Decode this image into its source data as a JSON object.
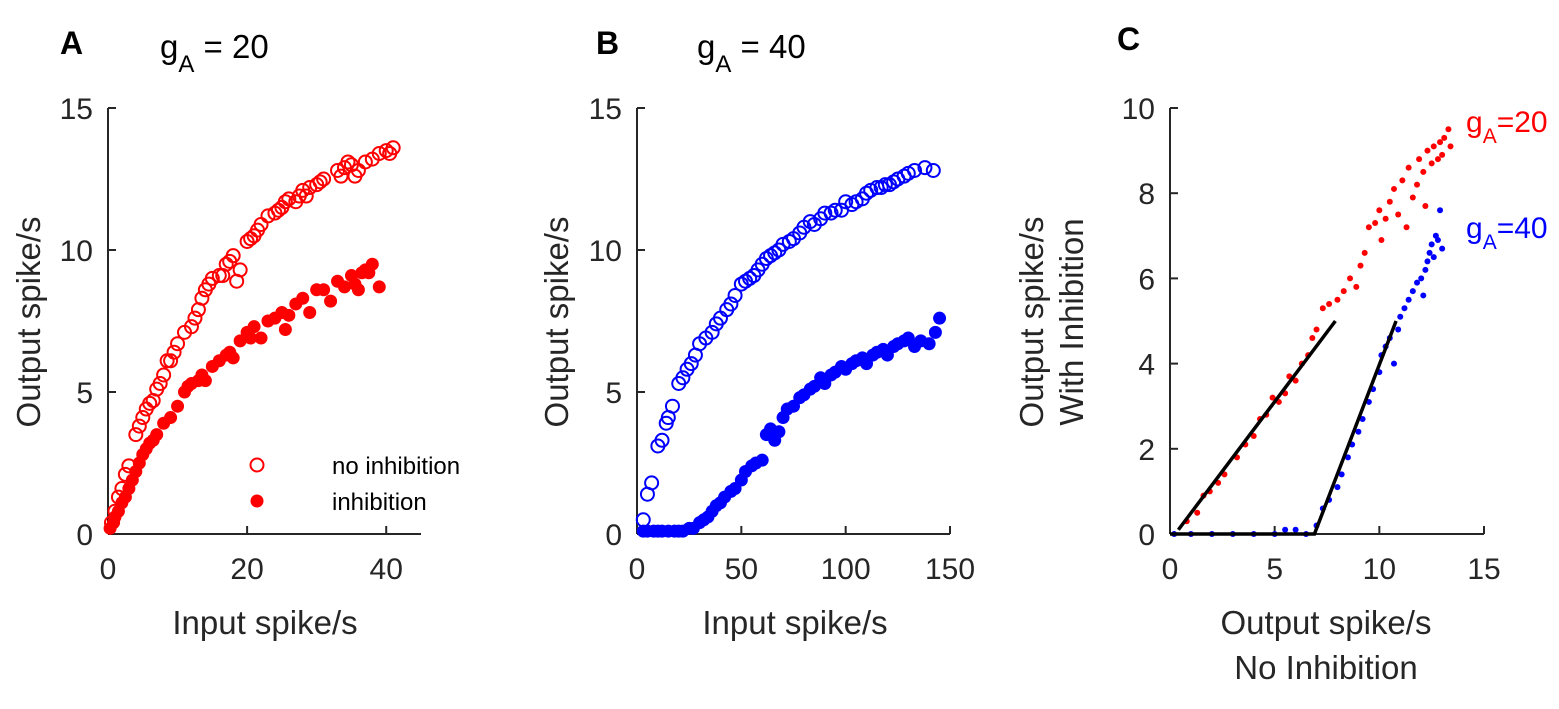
{
  "chart_data": [
    {
      "type": "scatter",
      "panel_label": "A",
      "title_parts": {
        "g": "g",
        "sub": "A",
        "rest": " = 20"
      },
      "xlabel": "Input spike/s",
      "ylabel": "Output spike/s",
      "xlim": [
        0,
        45
      ],
      "ylim": [
        0,
        15
      ],
      "xticks": [
        0,
        20,
        40
      ],
      "yticks": [
        0,
        5,
        10,
        15
      ],
      "legend": {
        "placement": "lower-right",
        "items": [
          "no inhibition",
          "inhibition"
        ]
      },
      "series": [
        {
          "name": "no inhibition",
          "marker": "open-circle",
          "color": "#ff0000",
          "x": [
            0.5,
            1,
            1.5,
            2,
            2.5,
            3,
            4,
            4.5,
            5,
            5.5,
            6,
            6.5,
            7,
            7.5,
            8,
            8.5,
            9,
            9.5,
            10,
            11,
            12,
            12.5,
            13,
            13.5,
            14,
            14.5,
            15,
            16,
            16.5,
            17,
            17.5,
            18,
            18.5,
            19,
            20,
            20.5,
            21,
            21.5,
            22,
            23,
            24,
            24.5,
            25,
            25.5,
            26,
            27,
            27.5,
            28,
            28.5,
            29,
            30,
            30.5,
            31,
            33,
            33.5,
            34,
            34.5,
            35,
            35.5,
            36,
            37,
            38,
            39,
            40,
            40.5,
            41
          ],
          "y": [
            0.4,
            0.8,
            1.3,
            1.6,
            2.1,
            2.4,
            3.5,
            3.8,
            4.1,
            4.4,
            4.6,
            4.7,
            5.1,
            5.3,
            5.6,
            6.1,
            6.1,
            6.4,
            6.7,
            7.1,
            7.3,
            7.6,
            7.9,
            8.3,
            8.6,
            8.8,
            9,
            9.1,
            9.1,
            9.5,
            9.6,
            9.8,
            8.9,
            9.3,
            10.3,
            10.4,
            10.5,
            10.7,
            10.9,
            11.2,
            11.3,
            11.4,
            11.5,
            11.7,
            11.8,
            11.7,
            11.9,
            12.1,
            11.9,
            12.2,
            12.3,
            12.4,
            12.5,
            12.8,
            12.6,
            12.9,
            13.1,
            13,
            12.6,
            12.8,
            13.1,
            13.2,
            13.4,
            13.5,
            13.4,
            13.6
          ]
        },
        {
          "name": "inhibition",
          "marker": "filled-circle",
          "color": "#ff0000",
          "x": [
            0.3,
            0.8,
            1,
            1.5,
            2,
            2.5,
            3,
            3.5,
            4,
            4.5,
            5,
            5.5,
            6,
            6.5,
            7,
            8,
            9,
            10,
            11,
            11.5,
            12,
            13,
            13.5,
            14,
            15,
            16,
            17,
            17.5,
            18,
            19,
            20,
            20.5,
            21,
            22,
            23,
            24,
            25,
            25.5,
            26,
            27,
            28,
            29,
            30,
            31,
            32,
            33,
            34,
            35,
            35.5,
            36,
            36.5,
            37,
            37.5,
            38,
            39
          ],
          "y": [
            0.2,
            0.4,
            0.6,
            0.8,
            1.1,
            1.3,
            1.6,
            1.9,
            2.2,
            2.5,
            2.8,
            3,
            3.2,
            3.3,
            3.5,
            3.9,
            4.1,
            4.5,
            5,
            5.2,
            5.3,
            5.4,
            5.6,
            5.4,
            5.9,
            6.1,
            6.3,
            6.4,
            6.2,
            6.8,
            7.1,
            6.9,
            7.3,
            6.9,
            7.5,
            7.6,
            7.8,
            7.2,
            7.7,
            8.1,
            8.3,
            7.8,
            8.6,
            8.6,
            8.2,
            8.9,
            8.7,
            9.1,
            8.8,
            8.6,
            9.2,
            9.3,
            9.2,
            9.5,
            8.7
          ]
        }
      ]
    },
    {
      "type": "scatter",
      "panel_label": "B",
      "title_parts": {
        "g": "g",
        "sub": "A",
        "rest": " = 40"
      },
      "xlabel": "Input spike/s",
      "ylabel": "Output spike/s",
      "xlim": [
        0,
        150
      ],
      "ylim": [
        0,
        15
      ],
      "xticks": [
        0,
        50,
        100,
        150
      ],
      "yticks": [
        0,
        5,
        10,
        15
      ],
      "series": [
        {
          "name": "no inhibition",
          "marker": "open-circle",
          "color": "#0000ff",
          "x": [
            3,
            5,
            7,
            10,
            12,
            14,
            15,
            17,
            20,
            22,
            24,
            26,
            28,
            30,
            33,
            36,
            38,
            40,
            43,
            45,
            47,
            50,
            52,
            54,
            56,
            58,
            60,
            62,
            64,
            66,
            68,
            70,
            73,
            75,
            78,
            80,
            83,
            85,
            88,
            90,
            93,
            95,
            98,
            100,
            103,
            105,
            108,
            110,
            112,
            115,
            117,
            119,
            121,
            123,
            125,
            128,
            130,
            133,
            138,
            142
          ],
          "y": [
            0.5,
            1.4,
            1.8,
            3.1,
            3.3,
            3.9,
            4.1,
            4.5,
            5.3,
            5.5,
            5.8,
            6,
            6.3,
            6.7,
            6.9,
            7.1,
            7.4,
            7.6,
            7.9,
            8.1,
            8.4,
            8.8,
            8.9,
            9,
            9.1,
            9.3,
            9.5,
            9.7,
            9.8,
            9.9,
            10,
            10.2,
            10.3,
            10.4,
            10.6,
            10.8,
            11,
            10.9,
            11.1,
            11.3,
            11.3,
            11.4,
            11.4,
            11.7,
            11.6,
            11.7,
            11.8,
            12,
            12.1,
            12.2,
            12.2,
            12.3,
            12.3,
            12.4,
            12.5,
            12.6,
            12.7,
            12.8,
            12.9,
            12.8
          ]
        },
        {
          "name": "inhibition",
          "marker": "filled-circle",
          "color": "#0000ff",
          "x": [
            3,
            5,
            8,
            10,
            12,
            15,
            18,
            20,
            22,
            25,
            27,
            30,
            32,
            34,
            36,
            38,
            40,
            42,
            45,
            47,
            50,
            52,
            55,
            57,
            60,
            62,
            64,
            66,
            68,
            70,
            72,
            75,
            78,
            80,
            83,
            85,
            88,
            90,
            93,
            95,
            98,
            100,
            103,
            105,
            108,
            110,
            113,
            115,
            118,
            120,
            123,
            125,
            128,
            130,
            133,
            136,
            140,
            143,
            145
          ],
          "y": [
            0.1,
            0.1,
            0.1,
            0.1,
            0.1,
            0.1,
            0.1,
            0.1,
            0.1,
            0.2,
            0.2,
            0.4,
            0.5,
            0.6,
            0.8,
            1,
            1.1,
            1.3,
            1.5,
            1.6,
            1.9,
            2.2,
            2.4,
            2.5,
            2.6,
            3.5,
            3.7,
            3.3,
            3.6,
            4.1,
            4.4,
            4.5,
            4.8,
            4.9,
            5.1,
            5.2,
            5.5,
            5.3,
            5.6,
            5.7,
            5.9,
            5.8,
            6,
            6.1,
            6.2,
            6,
            6.3,
            6.4,
            6.5,
            6.3,
            6.6,
            6.7,
            6.8,
            6.9,
            6.6,
            6.8,
            6.7,
            7.1,
            7.6
          ]
        }
      ]
    },
    {
      "type": "scatter",
      "panel_label": "C",
      "xlabel_lines": [
        "Output spike/s",
        "No Inhibition"
      ],
      "ylabel_lines": [
        "Output spike/s",
        "With Inhibition"
      ],
      "xlim": [
        0,
        15
      ],
      "ylim": [
        0,
        10
      ],
      "xticks": [
        0,
        5,
        10,
        15
      ],
      "yticks": [
        0,
        2,
        4,
        6,
        8,
        10
      ],
      "annotations": [
        {
          "g": "g",
          "sub": "A",
          "rest": "=20",
          "color": "#ff0000"
        },
        {
          "g": "g",
          "sub": "A",
          "rest": "=40",
          "color": "#0000ff"
        }
      ],
      "fit_lines": [
        {
          "name": "fit gA=20",
          "color": "#000000",
          "points": [
            [
              0.4,
              0.1
            ],
            [
              7.9,
              5.0
            ]
          ]
        },
        {
          "name": "fit gA=40",
          "color": "#000000",
          "points": [
            [
              0,
              0
            ],
            [
              6.9,
              0
            ],
            [
              10.8,
              5.0
            ]
          ]
        }
      ],
      "series": [
        {
          "name": "gA=20",
          "marker": "dot",
          "color": "#ff0000",
          "x": [
            0.8,
            1.3,
            1.6,
            1.9,
            2.3,
            2.6,
            3.2,
            3.6,
            4,
            4.3,
            4.6,
            4.9,
            5.2,
            5.5,
            5.7,
            6,
            6.3,
            6.6,
            6.8,
            7,
            7.3,
            7.6,
            8,
            8.3,
            8.6,
            8.9,
            9.1,
            9.3,
            9.5,
            9.8,
            10,
            10.1,
            10.3,
            10.5,
            10.7,
            10.9,
            11.1,
            11.3,
            11.4,
            11.6,
            11.8,
            11.9,
            12.1,
            12.2,
            12.3,
            12.5,
            12.6,
            12.8,
            12.9,
            13,
            13.1,
            13.3,
            13.4
          ],
          "y": [
            0.3,
            0.5,
            0.9,
            1,
            1.2,
            1.4,
            1.8,
            2.1,
            2.3,
            2.7,
            2.8,
            3.2,
            3.1,
            3.3,
            3.7,
            3.6,
            4,
            4.2,
            4.6,
            4.8,
            5.3,
            5.4,
            5.5,
            5.7,
            6,
            5.8,
            6.3,
            6.6,
            7.2,
            7.3,
            7.6,
            6.9,
            7.4,
            7.8,
            8.1,
            7.5,
            8.3,
            7.2,
            8.6,
            7.9,
            8.2,
            8.8,
            8.5,
            7.7,
            9,
            8.7,
            9.1,
            8.8,
            9.2,
            8.9,
            9.3,
            9.5,
            9.1
          ]
        },
        {
          "name": "gA=40",
          "marker": "dot",
          "color": "#0000ff",
          "x": [
            0.2,
            1,
            2,
            3,
            4,
            5,
            5.5,
            6,
            6.5,
            7,
            7.3,
            7.6,
            8,
            8.2,
            8.5,
            8.7,
            9,
            9.2,
            9.5,
            9.7,
            10,
            10.1,
            10.3,
            10.5,
            10.7,
            10.9,
            11,
            11.2,
            11.4,
            11.6,
            11.8,
            12,
            12.1,
            12.2,
            12.3,
            12.4,
            12.5,
            12.6,
            12.7,
            12.8,
            12.9,
            13
          ],
          "y": [
            0,
            0,
            0,
            0,
            0,
            0,
            0.1,
            0.1,
            0,
            0.2,
            0.6,
            0.8,
            1.1,
            1.4,
            1.8,
            2.1,
            2.4,
            2.7,
            3.1,
            3.4,
            3.8,
            4.2,
            4.4,
            4.6,
            4,
            4.8,
            5.1,
            5.3,
            5.5,
            5.7,
            5.9,
            6,
            5.6,
            6.2,
            6.4,
            6.6,
            6.8,
            6.5,
            7,
            6.9,
            7.6,
            6.7
          ]
        }
      ]
    }
  ]
}
